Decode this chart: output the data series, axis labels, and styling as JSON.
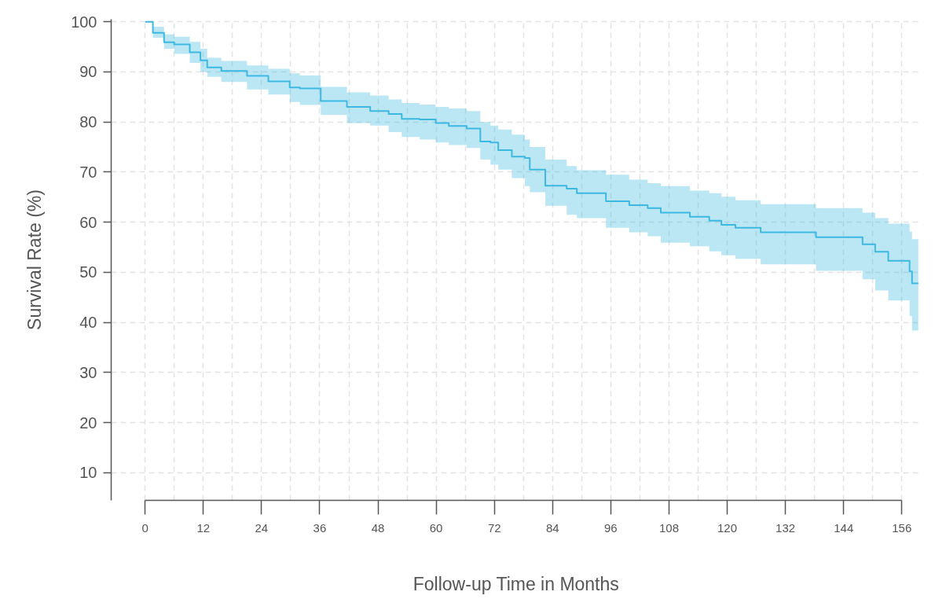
{
  "chart_data": {
    "type": "step",
    "xlabel": "Follow-up Time in Months",
    "ylabel": "Survival Rate (%)",
    "xlim": [
      -7,
      160
    ],
    "ylim": [
      4.5,
      100.5
    ],
    "xticks": [
      0,
      12,
      24,
      36,
      48,
      60,
      72,
      84,
      96,
      108,
      120,
      132,
      144,
      156
    ],
    "yticks": [
      10,
      20,
      30,
      40,
      50,
      60,
      70,
      80,
      90,
      100
    ],
    "grid": true,
    "series": [
      {
        "color": "#3db9e1",
        "x": [
          0,
          1.6,
          3.9,
          6,
          9.2,
          11.4,
          12.8,
          15.7,
          21,
          25.4,
          29.8,
          31.9,
          36.2,
          41.6,
          46.4,
          50.2,
          52.9,
          56.6,
          59.9,
          62.6,
          66.3,
          69.1,
          71.2,
          72.8,
          75.6,
          78.3,
          79.3,
          82.5,
          86.9,
          89,
          95,
          99.8,
          103.6,
          106.3,
          112.3,
          116.3,
          118.8,
          121.7,
          126.9,
          138.3,
          147.9,
          150.5,
          153.2,
          157.6,
          158.1,
          159.4
        ],
        "values": [
          100,
          97.8,
          95.9,
          95.5,
          93.9,
          92.3,
          90.9,
          90.2,
          89.2,
          88.1,
          86.9,
          86.7,
          84.2,
          83,
          82.2,
          81.6,
          80.6,
          80.5,
          79.8,
          79.2,
          78.7,
          76.1,
          75.9,
          74.4,
          73.1,
          72.8,
          70.5,
          67.3,
          66.7,
          65.8,
          64.2,
          63.4,
          62.8,
          61.9,
          61.1,
          60.3,
          59.5,
          58.9,
          58,
          57,
          55.6,
          54.1,
          52.3,
          50.2,
          47.8,
          47.8
        ],
        "lower": [
          100,
          96.8,
          94.6,
          93.6,
          91.8,
          90,
          89,
          88,
          86.5,
          85.5,
          84,
          83.4,
          81.4,
          79.8,
          79.3,
          78,
          77,
          76.5,
          75.9,
          75.4,
          74.8,
          72.5,
          71.5,
          70.5,
          68.8,
          67.2,
          66,
          63.3,
          61.5,
          60.8,
          58.9,
          58,
          57.2,
          55.9,
          55.2,
          54.2,
          53.4,
          52.7,
          51.6,
          50.3,
          48.6,
          46.4,
          44.4,
          41.3,
          38.4,
          38.4
        ],
        "upper": [
          100,
          99,
          97.5,
          97,
          96,
          94.6,
          92.8,
          92.2,
          91.3,
          90.6,
          89.7,
          89.3,
          87,
          85.9,
          85.3,
          84.5,
          83.8,
          83.5,
          83,
          82.7,
          82.2,
          80,
          79.3,
          78.5,
          77.5,
          76.5,
          75,
          72.5,
          71.2,
          70.4,
          69.5,
          68.5,
          67.8,
          67.2,
          66.3,
          65.8,
          65.1,
          64.4,
          63.6,
          62.8,
          61.9,
          60.8,
          59.7,
          58.1,
          56.6,
          56.6
        ]
      }
    ]
  }
}
